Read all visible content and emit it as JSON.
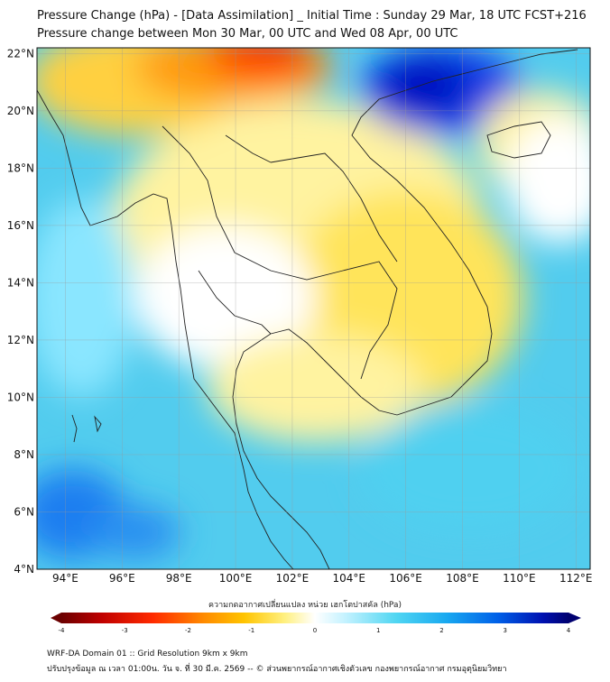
{
  "title_line1": "Pressure Change (hPa) - [Data Assimilation] _ Initial Time : Sunday 29 Mar, 18 UTC FCST+216",
  "title_line2": "Pressure change between Mon 30 Mar, 00 UTC and Wed 08 Apr, 00 UTC",
  "map": {
    "lon_range": [
      93,
      112.5
    ],
    "lat_range": [
      4,
      22.2
    ],
    "lon_ticks": [
      "94°E",
      "96°E",
      "98°E",
      "100°E",
      "102°E",
      "104°E",
      "106°E",
      "108°E",
      "110°E",
      "112°E"
    ],
    "lat_ticks": [
      "22°N",
      "20°N",
      "18°N",
      "16°N",
      "14°N",
      "12°N",
      "10°N",
      "8°N",
      "6°N",
      "4°N"
    ],
    "lon_values": [
      94,
      96,
      98,
      100,
      102,
      104,
      106,
      108,
      110,
      112
    ],
    "lat_values": [
      22,
      20,
      18,
      16,
      14,
      12,
      10,
      8,
      6,
      4
    ],
    "grid": true
  },
  "colorbar": {
    "title": "ความกดอากาศเปลี่ยนแปลง หน่วย เฮกโตปาสคัล (hPa)",
    "range": [
      -4,
      4
    ],
    "ticks": [
      "-4",
      "-3",
      "-2",
      "-1",
      "0",
      "1",
      "2",
      "3",
      "4"
    ],
    "colors": [
      "#6b0000",
      "#d00000",
      "#ff2000",
      "#ff7a00",
      "#ffc000",
      "#ffee70",
      "#ffffff",
      "#bff0ff",
      "#40d0f0",
      "#1090f0",
      "#0040e0",
      "#000080"
    ]
  },
  "footer_line1": "WRF-DA Domain 01 :: Grid Resolution 9km x 9km",
  "footer_line2": "ปรับปรุงข้อมูล ณ เวลา 01:00น. วัน จ. ที่ 30 มี.ค. 2569 -- © ส่วนพยากรณ์อากาศเชิงตัวเลข กองพยากรณ์อากาศ กรมอุตุนิยมวิทยา"
}
